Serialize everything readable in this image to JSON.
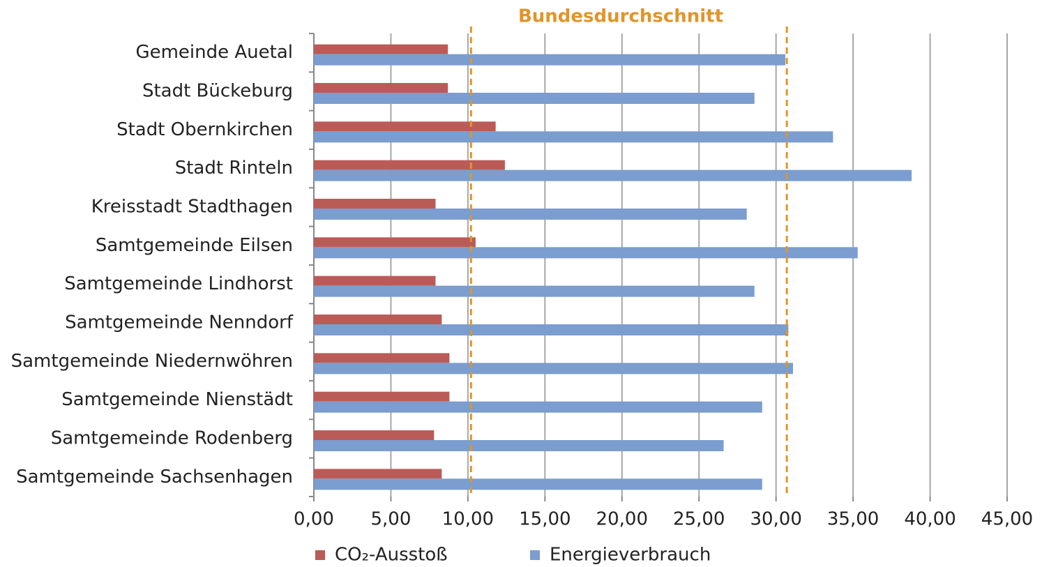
{
  "chart_data": {
    "type": "bar",
    "orientation": "horizontal",
    "annotation": "Bundesdurchschnitt",
    "categories": [
      "Gemeinde Auetal",
      "Stadt Bückeburg",
      "Stadt Obernkirchen",
      "Stadt Rinteln",
      "Kreisstadt Stadthagen",
      "Samtgemeinde Eilsen",
      "Samtgemeinde Lindhorst",
      "Samtgemeinde Nenndorf",
      "Samtgemeinde Niedernwöhren",
      "Samtgemeinde Nienstädt",
      "Samtgemeinde Rodenberg",
      "Samtgemeinde Sachsenhagen"
    ],
    "series": [
      {
        "name": "CO₂-Ausstoß",
        "color": "#bb5b57",
        "values": [
          8.7,
          8.7,
          11.8,
          12.4,
          7.9,
          10.5,
          7.9,
          8.3,
          8.8,
          8.8,
          7.8,
          8.3
        ]
      },
      {
        "name": "Energieverbrauch",
        "color": "#7b9dcf",
        "values": [
          30.6,
          28.6,
          33.7,
          38.8,
          28.1,
          35.3,
          28.6,
          30.8,
          31.1,
          29.1,
          26.6,
          29.1
        ]
      }
    ],
    "reference_lines": [
      {
        "value": 10.2
      },
      {
        "value": 30.7
      }
    ],
    "reference_color": "#e0952a",
    "xlim": [
      0,
      45
    ],
    "xticks": [
      {
        "value": 0,
        "label": "0,00"
      },
      {
        "value": 5,
        "label": "5,00"
      },
      {
        "value": 10,
        "label": "10,00"
      },
      {
        "value": 15,
        "label": "15,00"
      },
      {
        "value": 20,
        "label": "20,00"
      },
      {
        "value": 25,
        "label": "25,00"
      },
      {
        "value": 30,
        "label": "30,00"
      },
      {
        "value": 35,
        "label": "35,00"
      },
      {
        "value": 40,
        "label": "40,00"
      },
      {
        "value": 45,
        "label": "45,00"
      }
    ],
    "grid": true,
    "legend": "bottom"
  }
}
